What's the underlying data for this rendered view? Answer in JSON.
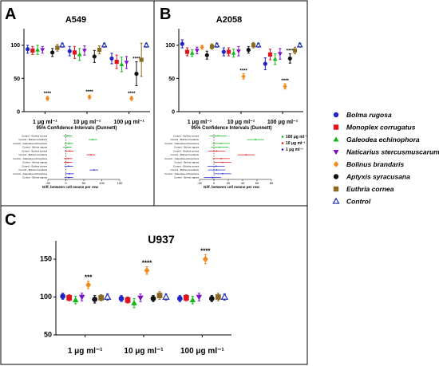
{
  "legend": [
    {
      "name": "Bolma rugosa",
      "color": "#1f24c9",
      "marker": "circle"
    },
    {
      "name": "Monoplex corrugatus",
      "color": "#e0141e",
      "marker": "square"
    },
    {
      "name": "Galeodea echinophora",
      "color": "#12b81a",
      "marker": "triangle"
    },
    {
      "name": "Naticarius stercusmuscarum",
      "color": "#7a10c8",
      "marker": "triangle-down"
    },
    {
      "name": "Bolinus brandaris",
      "color": "#f08a1c",
      "marker": "diamond"
    },
    {
      "name": "Aptyxis syracusana",
      "color": "#111111",
      "marker": "circle"
    },
    {
      "name": "Euthria cornea",
      "color": "#8a6a22",
      "marker": "square"
    },
    {
      "name": "Control",
      "color": "#1d2db0",
      "marker": "triangle-open"
    }
  ],
  "chart_data": [
    {
      "panel": "A",
      "type": "scatter",
      "title": "A549",
      "categories": [
        "1 μg ml⁻¹",
        "10 μg ml⁻¹",
        "100 μg ml⁻¹"
      ],
      "yticks": [
        0,
        50,
        100
      ],
      "ylim": [
        0,
        120
      ],
      "series": [
        {
          "name": "Bolma rugosa",
          "values": [
            94,
            91,
            80
          ],
          "err": [
            6,
            7,
            8
          ]
        },
        {
          "name": "Monoplex corrugatus",
          "values": [
            92,
            89,
            75
          ],
          "err": [
            6,
            9,
            10
          ]
        },
        {
          "name": "Galeodea echinophora",
          "values": [
            93,
            86,
            71
          ],
          "err": [
            7,
            9,
            11
          ]
        },
        {
          "name": "Naticarius stercusmuscarum",
          "values": [
            93,
            92,
            74
          ],
          "err": [
            5,
            7,
            9
          ]
        },
        {
          "name": "Bolinus brandaris",
          "values": [
            20,
            22,
            20
          ],
          "err": [
            3,
            3,
            3
          ],
          "sig": [
            "****",
            "****",
            "****"
          ]
        },
        {
          "name": "Aptyxis syracusana",
          "values": [
            89,
            83,
            57
          ],
          "err": [
            6,
            9,
            18
          ],
          "sig": [
            "",
            "",
            "****"
          ]
        },
        {
          "name": "Euthria cornea",
          "values": [
            96,
            93,
            78
          ],
          "err": [
            5,
            6,
            25
          ]
        },
        {
          "name": "Control",
          "values": [
            100,
            100,
            100
          ],
          "err": [
            3,
            3,
            3
          ]
        }
      ],
      "ci_title": "95% Confidence Intervals (Dunnett)",
      "ci_xlabel": "Diff. between cell means per row",
      "ci_xticks": [
        -50,
        0,
        50,
        100,
        150
      ],
      "ci_rows": [
        "Control - Euthria cornea",
        "Control - Bolinus brandaris",
        "Control - Galeodea echinophora",
        "Control - Bolma rugosa",
        "Control - Euthria cornea",
        "Control - Bolinus brandaris",
        "Control - Galeodea echinophora",
        "Control - Bolma rugosa",
        "Control - Euthria cornea",
        "Control - Bolinus brandaris",
        "Control - Galeodea echinophora",
        "Control - Bolma rugosa"
      ]
    },
    {
      "panel": "B",
      "type": "scatter",
      "title": "A2058",
      "categories": [
        "1 μg ml⁻¹",
        "10 μg ml⁻¹",
        "100 μg ml⁻¹"
      ],
      "yticks": [
        0,
        50,
        100
      ],
      "ylim": [
        0,
        120
      ],
      "series": [
        {
          "name": "Bolma rugosa",
          "values": [
            102,
            90,
            72
          ],
          "err": [
            6,
            6,
            9
          ]
        },
        {
          "name": "Monoplex corrugatus",
          "values": [
            90,
            90,
            86
          ],
          "err": [
            6,
            6,
            8
          ]
        },
        {
          "name": "Galeodea echinophora",
          "values": [
            88,
            88,
            79
          ],
          "err": [
            5,
            6,
            8
          ]
        },
        {
          "name": "Naticarius stercusmuscarum",
          "values": [
            92,
            91,
            87
          ],
          "err": [
            5,
            7,
            8
          ]
        },
        {
          "name": "Bolinus brandaris",
          "values": [
            97,
            53,
            38
          ],
          "err": [
            3,
            4,
            4
          ],
          "sig": [
            "",
            "****",
            "****"
          ]
        },
        {
          "name": "Aptyxis syracusana",
          "values": [
            85,
            93,
            80
          ],
          "err": [
            6,
            5,
            7
          ],
          "sig": [
            "",
            "",
            "****"
          ]
        },
        {
          "name": "Euthria cornea",
          "values": [
            98,
            100,
            92
          ],
          "err": [
            4,
            4,
            5
          ]
        },
        {
          "name": "Control",
          "values": [
            100,
            100,
            100
          ],
          "err": [
            3,
            3,
            3
          ]
        }
      ],
      "ci_title": "95% Confidence Intervals (Dunnett)",
      "ci_xlabel": "Diff. between cell means per row",
      "ci_xticks": [
        -20,
        0,
        20,
        40,
        60,
        80
      ],
      "ci_legend": [
        "100 μg ml⁻¹",
        "10 μg ml⁻¹",
        "1 μg ml⁻¹"
      ],
      "ci_rows": [
        "Control - Euthria cornea",
        "Control - Bolinus brandaris",
        "Control - Galeodea echinophora",
        "Control - Bolma rugosa",
        "Control - Euthria cornea",
        "Control - Bolinus brandaris",
        "Control - Galeodea echinophora",
        "Control - Bolma rugosa",
        "Control - Euthria cornea",
        "Control - Bolinus brandaris",
        "Control - Galeodea echinophora",
        "Control - Bolma rugosa"
      ]
    },
    {
      "panel": "C",
      "type": "scatter",
      "title": "U937",
      "categories": [
        "1 μg ml⁻¹",
        "10 μg ml⁻¹",
        "100 μg ml⁻¹"
      ],
      "yticks": [
        50,
        100,
        150
      ],
      "ylim": [
        50,
        170
      ],
      "series": [
        {
          "name": "Bolma rugosa",
          "values": [
            101,
            98,
            98
          ],
          "err": [
            4,
            4,
            4
          ]
        },
        {
          "name": "Monoplex corrugatus",
          "values": [
            99,
            96,
            99
          ],
          "err": [
            4,
            4,
            4
          ]
        },
        {
          "name": "Galeodea echinophora",
          "values": [
            96,
            92,
            96
          ],
          "err": [
            5,
            6,
            5
          ]
        },
        {
          "name": "Naticarius stercusmuscarum",
          "values": [
            100,
            99,
            100
          ],
          "err": [
            5,
            5,
            5
          ]
        },
        {
          "name": "Bolinus brandaris",
          "values": [
            116,
            135,
            150
          ],
          "err": [
            5,
            5,
            6
          ],
          "sig": [
            "***",
            "****",
            "****"
          ]
        },
        {
          "name": "Aptyxis syracusana",
          "values": [
            97,
            98,
            98
          ],
          "err": [
            5,
            4,
            4
          ]
        },
        {
          "name": "Euthria cornea",
          "values": [
            99,
            102,
            100
          ],
          "err": [
            4,
            5,
            5
          ]
        },
        {
          "name": "Control",
          "values": [
            100,
            100,
            100
          ],
          "err": [
            4,
            4,
            4
          ]
        }
      ]
    }
  ]
}
